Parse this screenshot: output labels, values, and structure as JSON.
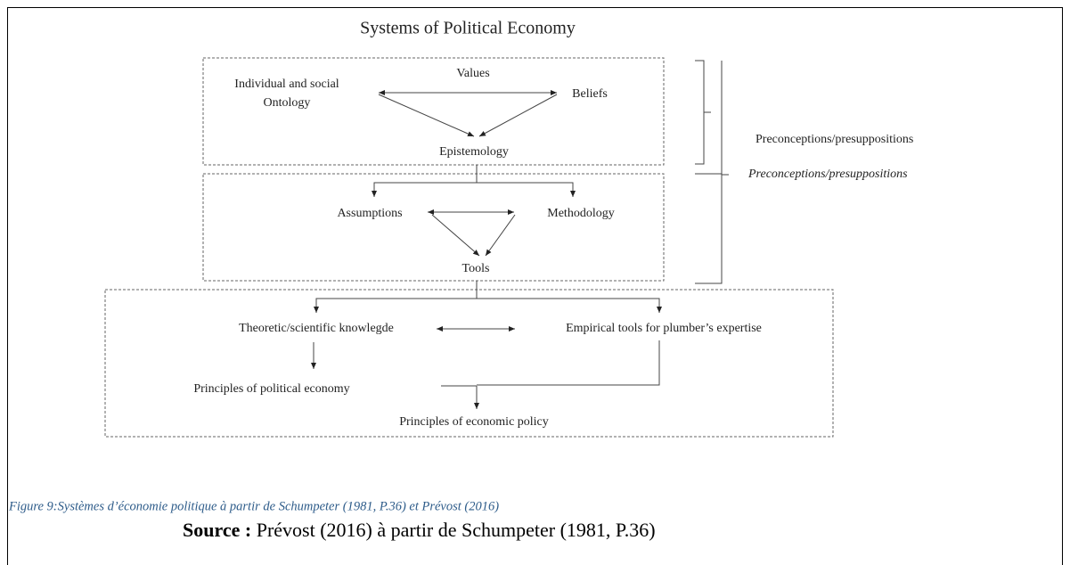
{
  "title": "Systems of Political Economy",
  "nodes": [
    {
      "label": "Values"
    },
    {
      "label": [
        "Individual and social",
        "Ontology"
      ]
    },
    {
      "label": "Beliefs"
    },
    {
      "label": "Epistemology"
    },
    {
      "label": "Assumptions"
    },
    {
      "label": "Methodology"
    },
    {
      "label": "Tools"
    },
    {
      "label": "Theoretic/scientific knowlegde"
    },
    {
      "label": "Empirical tools for plumber’s expertise"
    },
    {
      "label": "Principles of political economy"
    },
    {
      "label": "Principles of economic policy"
    }
  ],
  "brackets": [
    "Preconceptions/presuppositions",
    "Preconceptions/presuppositions"
  ],
  "caption": "Figure 9:Systèmes d’économie politique à partir de Schumpeter (1981, P.36) et Prévost (2016)",
  "source": {
    "label": "Source :",
    "text": " Prévost (2016) à partir de Schumpeter (1981, P.36)"
  }
}
